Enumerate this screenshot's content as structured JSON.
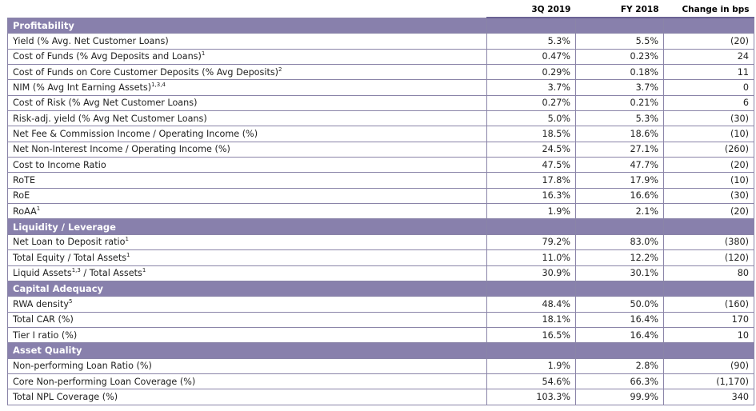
{
  "header": {
    "col1": "3Q 2019",
    "col2": "FY 2018",
    "col3": "Change in bps"
  },
  "sections": {
    "profitability": "Profitability",
    "liquidity": "Liquidity / Leverage",
    "capital": "Capital Adequacy",
    "asset": "Asset Quality"
  },
  "rows": {
    "yield": {
      "label": "Yield (% Avg. Net Customer Loans)",
      "sup": "",
      "v1": "5.3%",
      "v2": "5.5%",
      "v3": "(20)"
    },
    "cof": {
      "label": "Cost of Funds (% Avg Deposits and Loans)",
      "sup": "1",
      "v1": "0.47%",
      "v2": "0.23%",
      "v3": "24"
    },
    "cofcore": {
      "label": "Cost of Funds on Core Customer Deposits (% Avg Deposits)",
      "sup": "2",
      "v1": "0.29%",
      "v2": "0.18%",
      "v3": "11"
    },
    "nim": {
      "label": "NIM (% Avg Int Earning Assets)",
      "sup": "1,3,4",
      "v1": "3.7%",
      "v2": "3.7%",
      "v3": "0"
    },
    "cor": {
      "label": "Cost of Risk (% Avg Net Customer Loans)",
      "sup": "",
      "v1": "0.27%",
      "v2": "0.21%",
      "v3": "6"
    },
    "riskadj": {
      "label": "Risk-adj. yield (% Avg Net Customer Loans)",
      "sup": "",
      "v1": "5.0%",
      "v2": "5.3%",
      "v3": "(30)"
    },
    "netfee": {
      "label": "Net Fee & Commission Income / Operating Income (%)",
      "sup": "",
      "v1": "18.5%",
      "v2": "18.6%",
      "v3": "(10)"
    },
    "nonint": {
      "label": "Net Non-Interest Income / Operating Income (%)",
      "sup": "",
      "v1": "24.5%",
      "v2": "27.1%",
      "v3": "(260)"
    },
    "cti": {
      "label": "Cost to Income Ratio",
      "sup": "",
      "v1": "47.5%",
      "v2": "47.7%",
      "v3": "(20)"
    },
    "rote": {
      "label": "RoTE",
      "sup": "",
      "v1": "17.8%",
      "v2": "17.9%",
      "v3": "(10)"
    },
    "roe": {
      "label": "RoE",
      "sup": "",
      "v1": "16.3%",
      "v2": "16.6%",
      "v3": "(30)"
    },
    "roaa": {
      "label": "RoAA",
      "sup": "1",
      "v1": "1.9%",
      "v2": "2.1%",
      "v3": "(20)"
    },
    "ltd": {
      "label": "Net Loan to Deposit ratio",
      "sup": "1",
      "v1": "79.2%",
      "v2": "83.0%",
      "v3": "(380)"
    },
    "eqa": {
      "label": "Total Equity / Total Assets",
      "sup": "1",
      "v1": "11.0%",
      "v2": "12.2%",
      "v3": "(120)"
    },
    "liq": {
      "label_a": "Liquid Assets",
      "sup_a": "1,3",
      "label_b": " / Total Assets",
      "sup": "1",
      "v1": "30.9%",
      "v2": "30.1%",
      "v3": "80"
    },
    "rwa": {
      "label": "RWA density",
      "sup": "5",
      "v1": "48.4%",
      "v2": "50.0%",
      "v3": "(160)"
    },
    "car": {
      "label": "Total CAR (%)",
      "sup": "",
      "v1": "18.1%",
      "v2": "16.4%",
      "v3": "170"
    },
    "tier1": {
      "label": "Tier I ratio (%)",
      "sup": "",
      "v1": "16.5%",
      "v2": "16.4%",
      "v3": "10"
    },
    "npl": {
      "label": "Non-performing Loan Ratio (%)",
      "sup": "",
      "v1": "1.9%",
      "v2": "2.8%",
      "v3": "(90)"
    },
    "corenpl": {
      "label": "Core Non-performing Loan Coverage (%)",
      "sup": "",
      "v1": "54.6%",
      "v2": "66.3%",
      "v3": "(1,170)"
    },
    "totnpl": {
      "label": "Total NPL Coverage (%)",
      "sup": "",
      "v1": "103.3%",
      "v2": "99.9%",
      "v3": "340"
    }
  },
  "colors": {
    "section_bg": "#8880ac",
    "grid": "#8a84a8"
  }
}
